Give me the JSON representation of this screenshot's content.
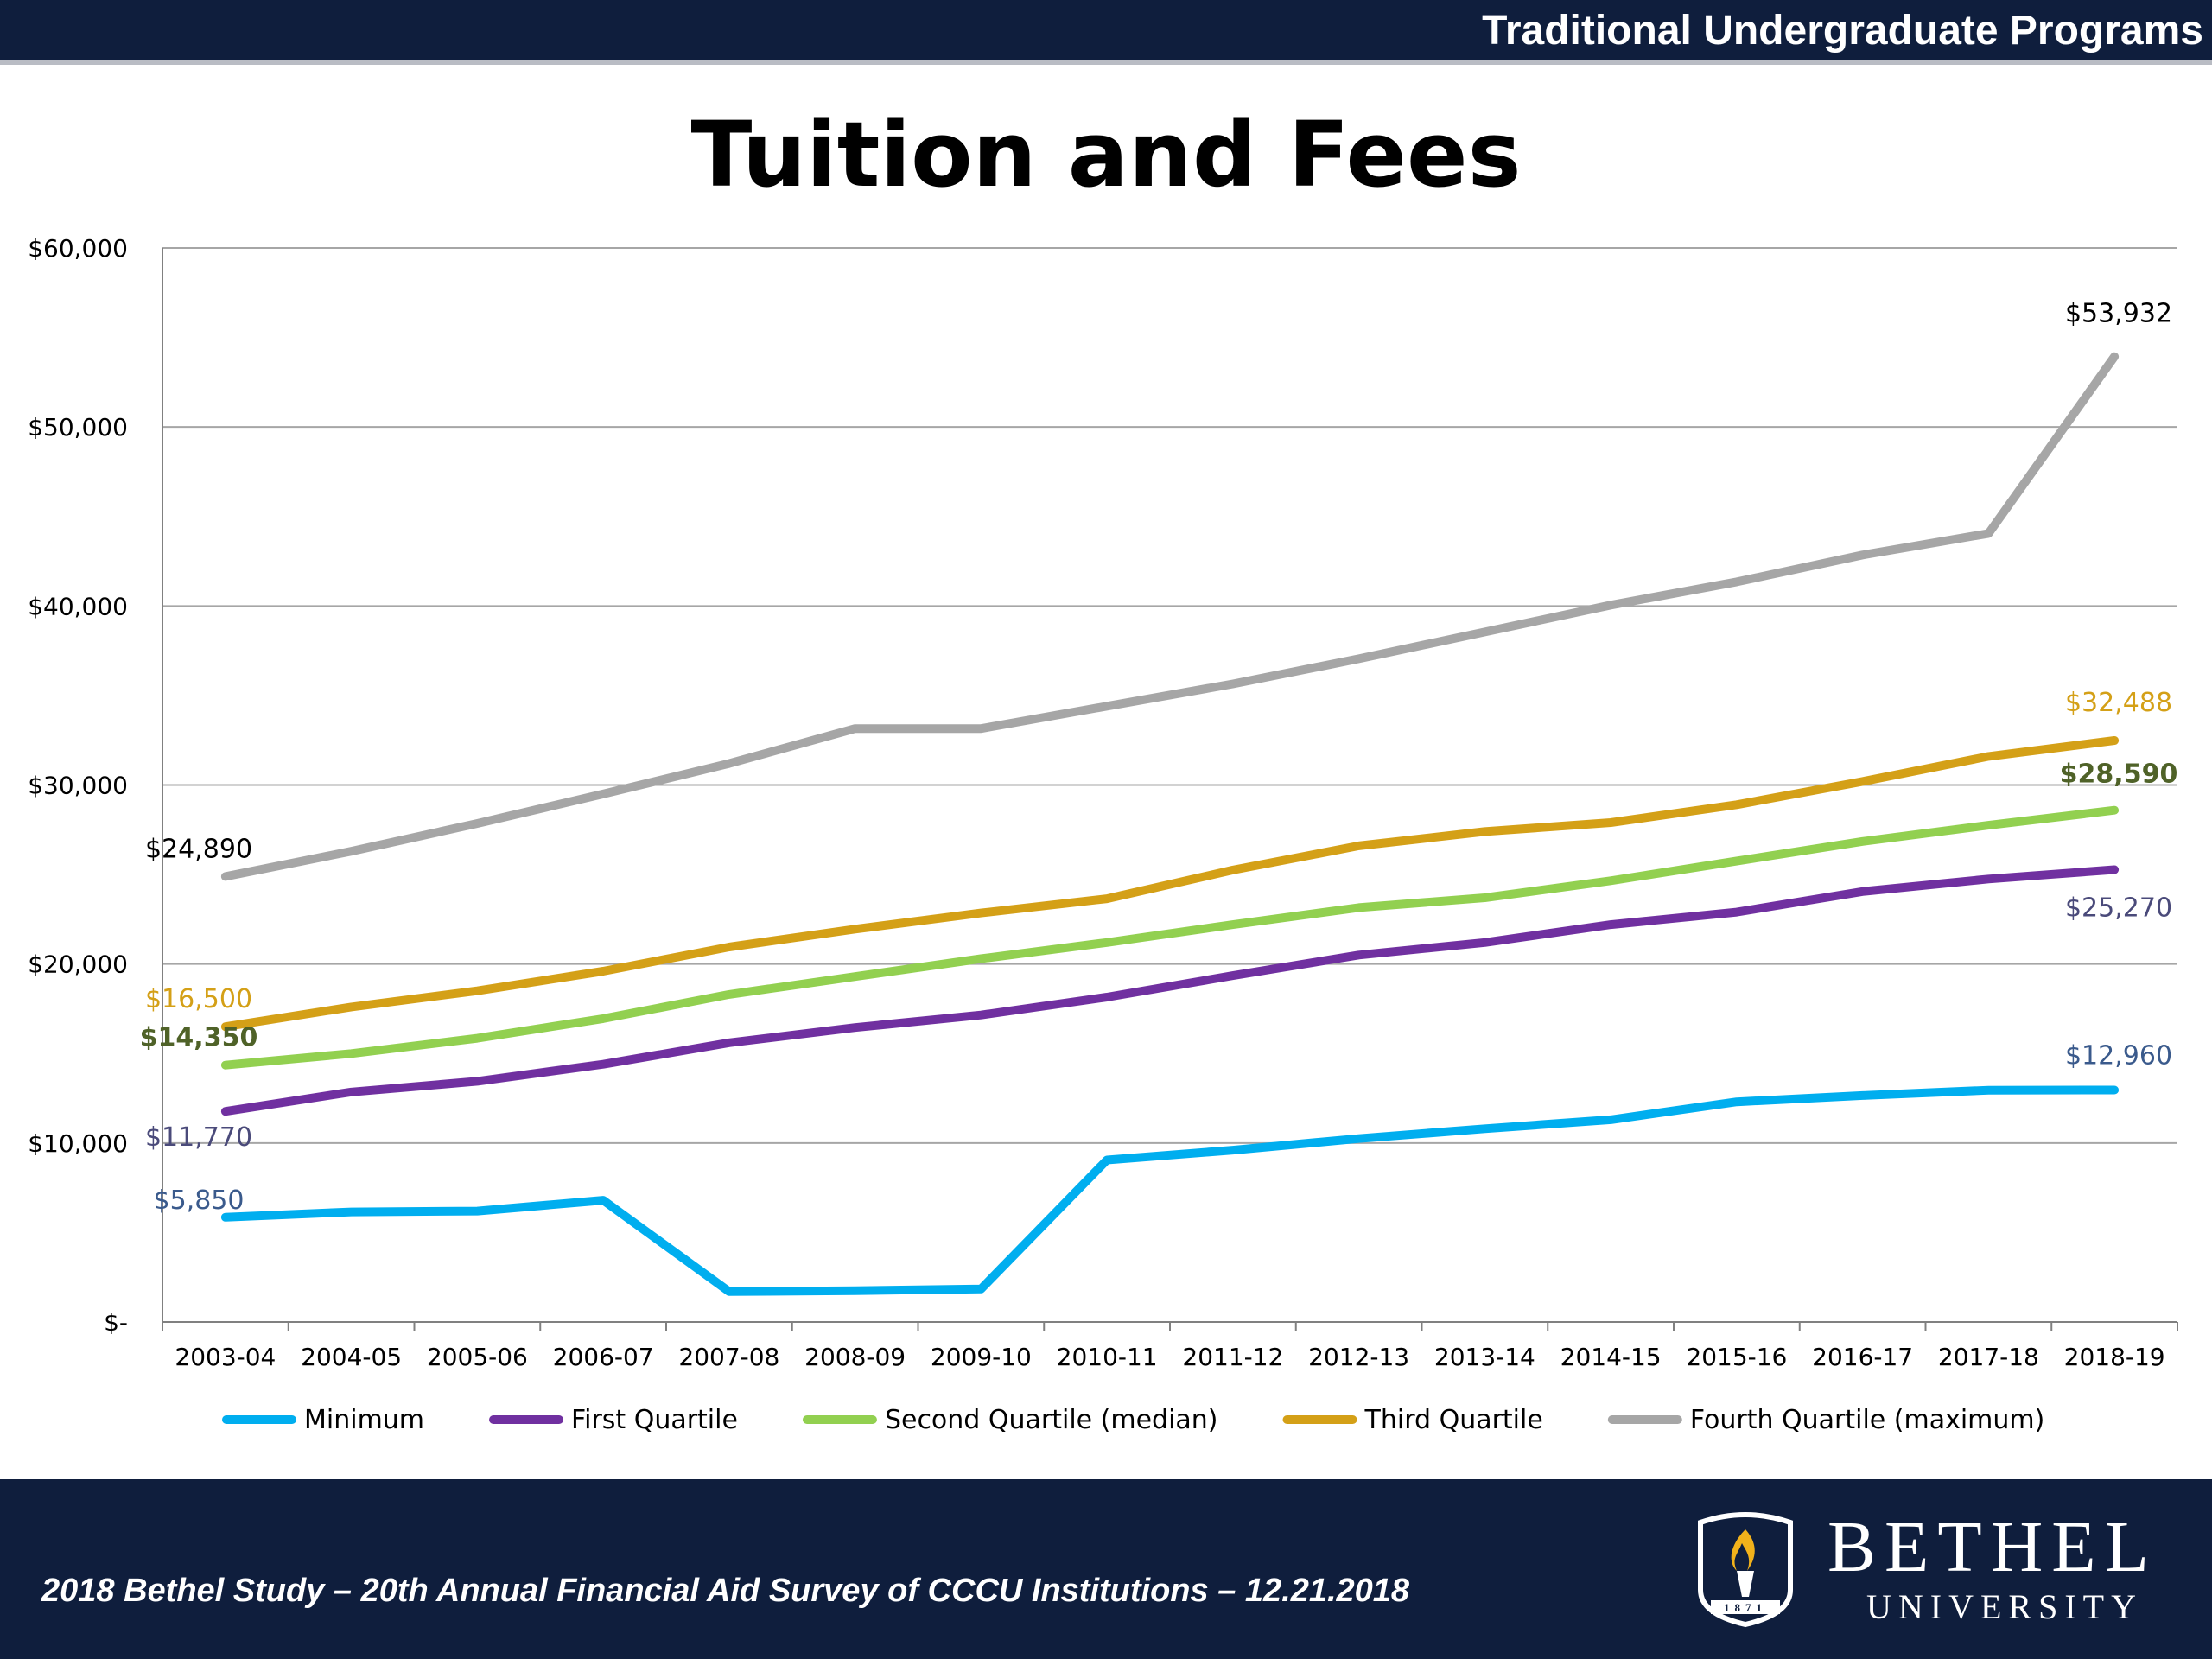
{
  "header": {
    "title": "Traditional Undergraduate Programs"
  },
  "page_title": "Tuition and Fees",
  "footer": {
    "text": "2018 Bethel Study – 20th Annual Financial Aid Survey of CCCU Institutions – 12.21.2018",
    "logo_name": "BETHEL",
    "logo_sub": "UNIVERSITY",
    "logo_year": "1871"
  },
  "chart_data": {
    "type": "line",
    "title": "Tuition and Fees",
    "xlabel": "",
    "ylabel": "",
    "ylim": [
      0,
      60000
    ],
    "yticks": [
      0,
      10000,
      20000,
      30000,
      40000,
      50000,
      60000
    ],
    "ytick_labels": [
      "$-",
      "$10,000",
      "$20,000",
      "$30,000",
      "$40,000",
      "$50,000",
      "$60,000"
    ],
    "grid": true,
    "legend_position": "bottom",
    "categories": [
      "2003-04",
      "2004-05",
      "2005-06",
      "2006-07",
      "2007-08",
      "2008-09",
      "2009-10",
      "2010-11",
      "2011-12",
      "2012-13",
      "2013-14",
      "2014-15",
      "2015-16",
      "2016-17",
      "2017-18",
      "2018-19"
    ],
    "series": [
      {
        "name": "Minimum",
        "color": "#00aeef",
        "values": [
          5850,
          6150,
          6200,
          6800,
          1700,
          1750,
          1850,
          9050,
          9600,
          10250,
          10800,
          11300,
          12300,
          12650,
          12950,
          12960
        ],
        "start_label": "$5,850",
        "end_label": "$12,960",
        "label_color": "#3a5a8c",
        "label_bold": false
      },
      {
        "name": "First Quartile",
        "color": "#7030a0",
        "values": [
          11770,
          12850,
          13450,
          14400,
          15600,
          16450,
          17150,
          18150,
          19350,
          20500,
          21200,
          22200,
          22900,
          24050,
          24750,
          25270
        ],
        "start_label": "$11,770",
        "end_label": "$25,270",
        "label_color": "#4a4a7a",
        "label_bold": false
      },
      {
        "name": "Second Quartile (median)",
        "color": "#92d050",
        "values": [
          14350,
          15000,
          15850,
          16950,
          18300,
          19300,
          20300,
          21200,
          22200,
          23150,
          23700,
          24650,
          25750,
          26850,
          27750,
          28590
        ],
        "start_label": "$14,350",
        "end_label": "$28,590",
        "label_color": "#4f6228",
        "label_bold": true
      },
      {
        "name": "Third Quartile",
        "color": "#d4a017",
        "values": [
          16500,
          17600,
          18500,
          19600,
          20950,
          21950,
          22850,
          23650,
          25250,
          26600,
          27400,
          27900,
          28900,
          30200,
          31600,
          32488
        ],
        "start_label": "$16,500",
        "end_label": "$32,488",
        "label_color": "#d4a017",
        "label_bold": false
      },
      {
        "name": "Fourth Quartile (maximum)",
        "color": "#a6a6a6",
        "values": [
          24890,
          26300,
          27850,
          29500,
          31200,
          33150,
          33150,
          34400,
          35650,
          37050,
          38550,
          40050,
          41350,
          42850,
          44050,
          53932
        ],
        "start_label": "$24,890",
        "end_label": "$53,932",
        "label_color": "#000000",
        "label_bold": false
      }
    ]
  }
}
